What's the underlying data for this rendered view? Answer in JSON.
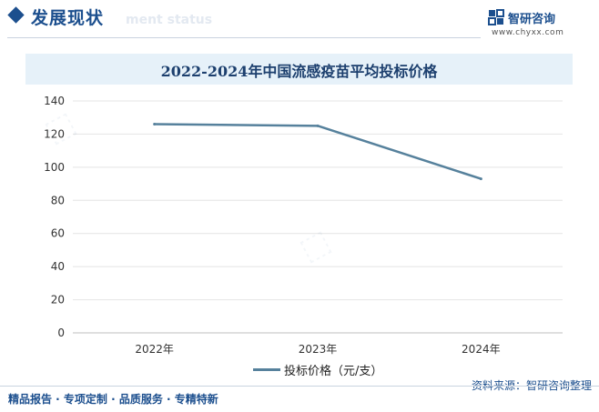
{
  "header": {
    "section_title": "发展现状",
    "section_subtitle_ghost": "ment status",
    "brand_name": "智研咨询",
    "brand_url": "www.chyxx.com"
  },
  "chart_data": {
    "type": "line",
    "title": "2022-2024年中国流感疫苗平均投标价格",
    "categories": [
      "2022年",
      "2023年",
      "2024年"
    ],
    "series": [
      {
        "name": "投标价格（元/支）",
        "values": [
          126,
          125,
          93
        ],
        "color": "#56819c"
      }
    ],
    "ylim": [
      0,
      140
    ],
    "yticks": [
      0,
      20,
      40,
      60,
      80,
      100,
      120,
      140
    ],
    "grid": true,
    "legend": "bottom"
  },
  "source": "资料来源：智研咨询整理",
  "footer": "精品报告 · 专项定制 · 品质服务 · 专精特新"
}
